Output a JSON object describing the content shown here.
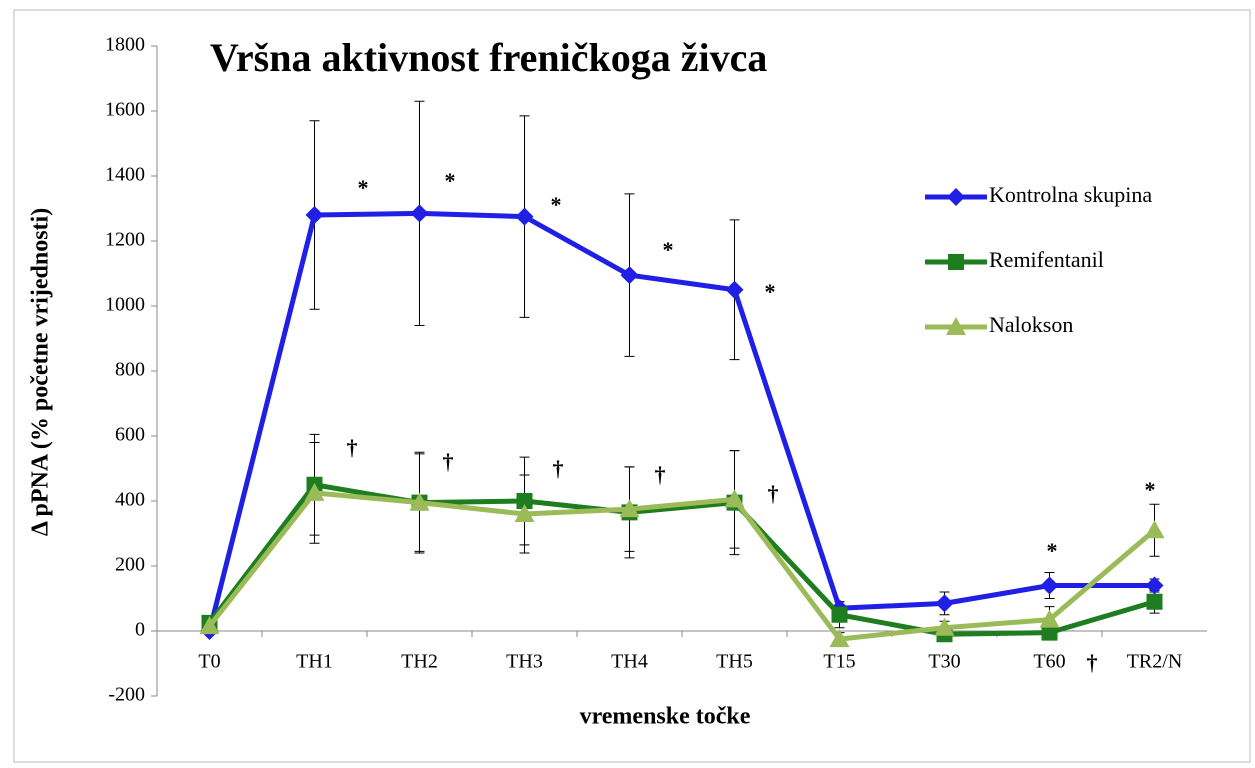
{
  "chart_data": {
    "type": "line",
    "title": "Vršna aktivnost freničkoga živca",
    "xlabel": "vremenske točke",
    "ylabel": "Δ pPNA (% početne vrijednosti)",
    "categories": [
      "T0",
      "TH1",
      "TH2",
      "TH3",
      "TH4",
      "TH5",
      "T15",
      "T30",
      "T60",
      "TR2/N"
    ],
    "series": [
      {
        "name": "Kontrolna skupina",
        "color": "#1f1fe6",
        "marker": "diamond",
        "values": [
          0,
          1280,
          1285,
          1275,
          1095,
          1050,
          70,
          85,
          140,
          140
        ],
        "errors": [
          10,
          290,
          345,
          310,
          250,
          215,
          20,
          35,
          40,
          20
        ]
      },
      {
        "name": "Remifentanil",
        "color": "#1e7d1e",
        "marker": "square",
        "values": [
          25,
          450,
          395,
          400,
          365,
          395,
          50,
          -10,
          -5,
          90
        ],
        "errors": [
          10,
          155,
          150,
          135,
          140,
          160,
          40,
          15,
          20,
          35
        ]
      },
      {
        "name": "Nalokson",
        "color": "#9bbb59",
        "marker": "triangle",
        "values": [
          15,
          425,
          395,
          360,
          375,
          405,
          -25,
          10,
          35,
          310
        ],
        "errors": [
          10,
          155,
          155,
          120,
          130,
          150,
          20,
          20,
          40,
          80
        ]
      }
    ],
    "annotations": [
      "*",
      "*",
      "*",
      "*",
      "*",
      "*",
      "*",
      "†",
      "†",
      "†",
      "†",
      "†",
      "†"
    ],
    "ylim": [
      -200,
      1800
    ],
    "yticks": [
      -200,
      0,
      200,
      400,
      600,
      800,
      1000,
      1200,
      1400,
      1600,
      1800
    ],
    "legend": "right"
  }
}
